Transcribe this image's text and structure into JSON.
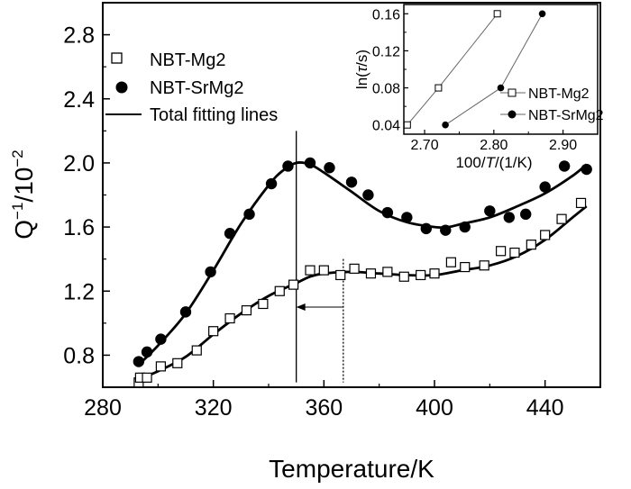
{
  "chart_data": {
    "type": "scatter",
    "title": "",
    "xlabel": "Temperature/K",
    "ylabel_main": "Q",
    "ylabel_sup1": "−1",
    "ylabel_mid": "/10",
    "ylabel_sup2": "−2",
    "xlim": [
      280,
      460
    ],
    "ylim": [
      0.6,
      3.0
    ],
    "xticks": [
      "280",
      "320",
      "360",
      "400",
      "440"
    ],
    "yticks": [
      "0.8",
      "1.2",
      "1.6",
      "2.0",
      "2.4",
      "2.8"
    ],
    "legend": {
      "position": "top-left",
      "entries": [
        "NBT-Mg2",
        "NBT-SrMg2",
        "Total fitting lines"
      ]
    },
    "series": [
      {
        "name": "NBT-Mg2",
        "marker": "open-square",
        "x": [
          293,
          293.5,
          296,
          301,
          307,
          314,
          320,
          326,
          332,
          338,
          344,
          349,
          355,
          360,
          366,
          371,
          377,
          383,
          389,
          395,
          400,
          406,
          411,
          418,
          424,
          429,
          435,
          440,
          446,
          453
        ],
        "y": [
          0.63,
          0.66,
          0.66,
          0.73,
          0.75,
          0.83,
          0.95,
          1.03,
          1.08,
          1.12,
          1.2,
          1.24,
          1.33,
          1.33,
          1.3,
          1.34,
          1.31,
          1.32,
          1.29,
          1.3,
          1.31,
          1.38,
          1.35,
          1.36,
          1.45,
          1.44,
          1.49,
          1.55,
          1.65,
          1.75
        ]
      },
      {
        "name": "NBT-SrMg2",
        "marker": "filled-circle",
        "x": [
          293,
          296,
          301,
          310,
          319,
          326,
          333,
          341,
          347,
          355,
          362,
          370,
          376,
          383,
          390,
          397,
          404,
          411,
          420,
          427,
          433,
          440,
          447,
          455
        ],
        "y": [
          0.76,
          0.82,
          0.9,
          1.07,
          1.32,
          1.56,
          1.68,
          1.87,
          1.98,
          2.0,
          1.97,
          1.88,
          1.8,
          1.69,
          1.66,
          1.59,
          1.58,
          1.6,
          1.7,
          1.66,
          1.68,
          1.85,
          1.98,
          1.96
        ]
      }
    ],
    "fits": [
      {
        "name": "NBT-Mg2 fit",
        "x": [
          293,
          300,
          310,
          320,
          330,
          340,
          350,
          355,
          360,
          370,
          380,
          390,
          400,
          410,
          420,
          430,
          440,
          450,
          455
        ],
        "y": [
          0.65,
          0.7,
          0.79,
          0.93,
          1.06,
          1.17,
          1.25,
          1.29,
          1.31,
          1.32,
          1.31,
          1.3,
          1.3,
          1.33,
          1.36,
          1.42,
          1.52,
          1.66,
          1.73
        ]
      },
      {
        "name": "NBT-SrMg2 fit",
        "x": [
          293,
          300,
          310,
          320,
          330,
          340,
          345,
          350,
          355,
          360,
          370,
          380,
          390,
          400,
          405,
          410,
          420,
          430,
          440,
          450,
          455
        ],
        "y": [
          0.74,
          0.86,
          1.06,
          1.33,
          1.62,
          1.86,
          1.95,
          2.0,
          1.99,
          1.94,
          1.82,
          1.7,
          1.63,
          1.6,
          1.6,
          1.62,
          1.66,
          1.73,
          1.81,
          1.92,
          1.99
        ]
      }
    ],
    "annotations": {
      "vline_solid_x": 350,
      "vline_dotted_x": 367,
      "arrow": {
        "from_x": 367,
        "to_x": 350,
        "y": 1.1
      }
    },
    "inset": {
      "type": "line",
      "xlabel_prefix": "100/",
      "xlabel_italic": "T",
      "xlabel_suffix": "/(1/K)",
      "ylabel_prefix": "ln(",
      "ylabel_italic": "τ",
      "ylabel_suffix": "/s)",
      "xlim": [
        2.67,
        2.95
      ],
      "ylim": [
        0.03,
        0.17
      ],
      "xticks": [
        "2.70",
        "2.80",
        "2.90"
      ],
      "yticks": [
        "0.04",
        "0.08",
        "0.12",
        "0.16"
      ],
      "legend": {
        "position": "bottom-right",
        "entries": [
          "NBT-Mg2",
          "NBT-SrMg2"
        ]
      },
      "series": [
        {
          "name": "NBT-Mg2",
          "marker": "open-square",
          "x": [
            2.675,
            2.72,
            2.805
          ],
          "y": [
            0.04,
            0.08,
            0.16
          ]
        },
        {
          "name": "NBT-SrMg2",
          "marker": "filled-circle",
          "x": [
            2.73,
            2.81,
            2.87
          ],
          "y": [
            0.04,
            0.08,
            0.16
          ]
        }
      ]
    }
  }
}
